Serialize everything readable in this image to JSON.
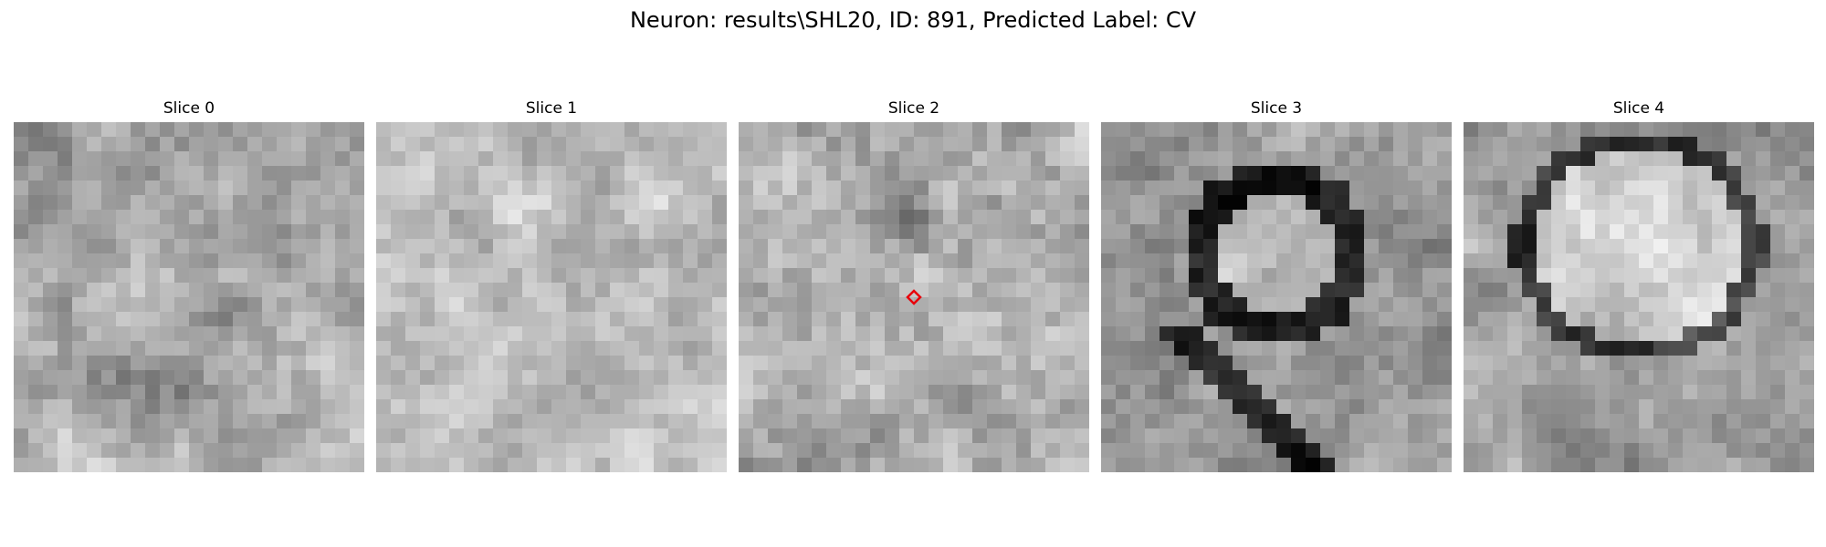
{
  "figure": {
    "title": "Neuron: results\\SHL20, ID: 891, Predicted Label: CV",
    "marker_color": "#e8000b",
    "marker_slice": 2,
    "panels": [
      {
        "title": "Slice 0",
        "texture": "noisy-gray"
      },
      {
        "title": "Slice 1",
        "texture": "light-noisy-gray"
      },
      {
        "title": "Slice 2",
        "texture": "noisy-gray-dark-spot"
      },
      {
        "title": "Slice 3",
        "texture": "dark-ring-with-bright-core"
      },
      {
        "title": "Slice 4",
        "texture": "thin-dark-ring-bright-core"
      }
    ]
  }
}
